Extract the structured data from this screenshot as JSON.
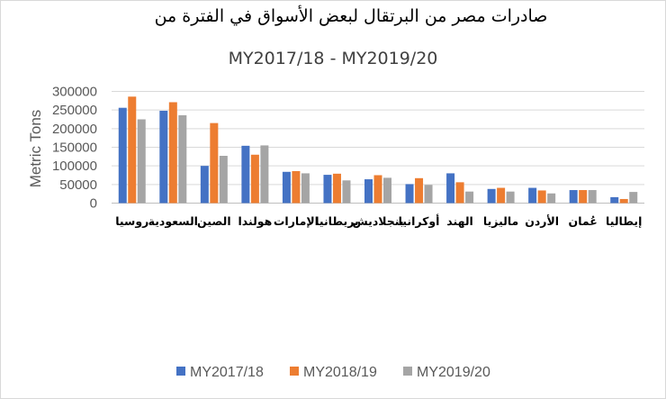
{
  "chart_data": {
    "type": "bar",
    "title": "صادرات مصر من البرتقال لبعض الأسواق في الفترة من",
    "subtitle": "MY2017/18 - MY2019/20",
    "xlabel": "",
    "ylabel": "Metric Tons",
    "ylim": [
      0,
      300000
    ],
    "yticks": [
      "0",
      "50000",
      "100000",
      "150000",
      "200000",
      "250000",
      "300000"
    ],
    "grid": true,
    "legend_position": "bottom",
    "categories": [
      "روسيا",
      "السعودية",
      "الصين",
      "هولندا",
      "الإمارات",
      "بريطانيا",
      "بنجلاديش",
      "أوكرانيا",
      "الهند",
      "ماليزيا",
      "الأردن",
      "عُمان",
      "إيطاليا"
    ],
    "series": [
      {
        "name": "MY2017/18",
        "color": "#4472c4",
        "values": [
          256000,
          248000,
          100000,
          154000,
          84000,
          76000,
          64000,
          51000,
          80000,
          38000,
          41000,
          35000,
          16000
        ]
      },
      {
        "name": "MY2018/19",
        "color": "#ed7d31",
        "values": [
          286000,
          271000,
          215000,
          130000,
          86000,
          79000,
          75000,
          67000,
          56000,
          41000,
          34000,
          35000,
          11000
        ]
      },
      {
        "name": "MY2019/20",
        "color": "#a5a5a5",
        "values": [
          225000,
          236000,
          127000,
          155000,
          80000,
          61000,
          68000,
          49000,
          31000,
          31000,
          26000,
          35000,
          30000
        ]
      }
    ]
  }
}
